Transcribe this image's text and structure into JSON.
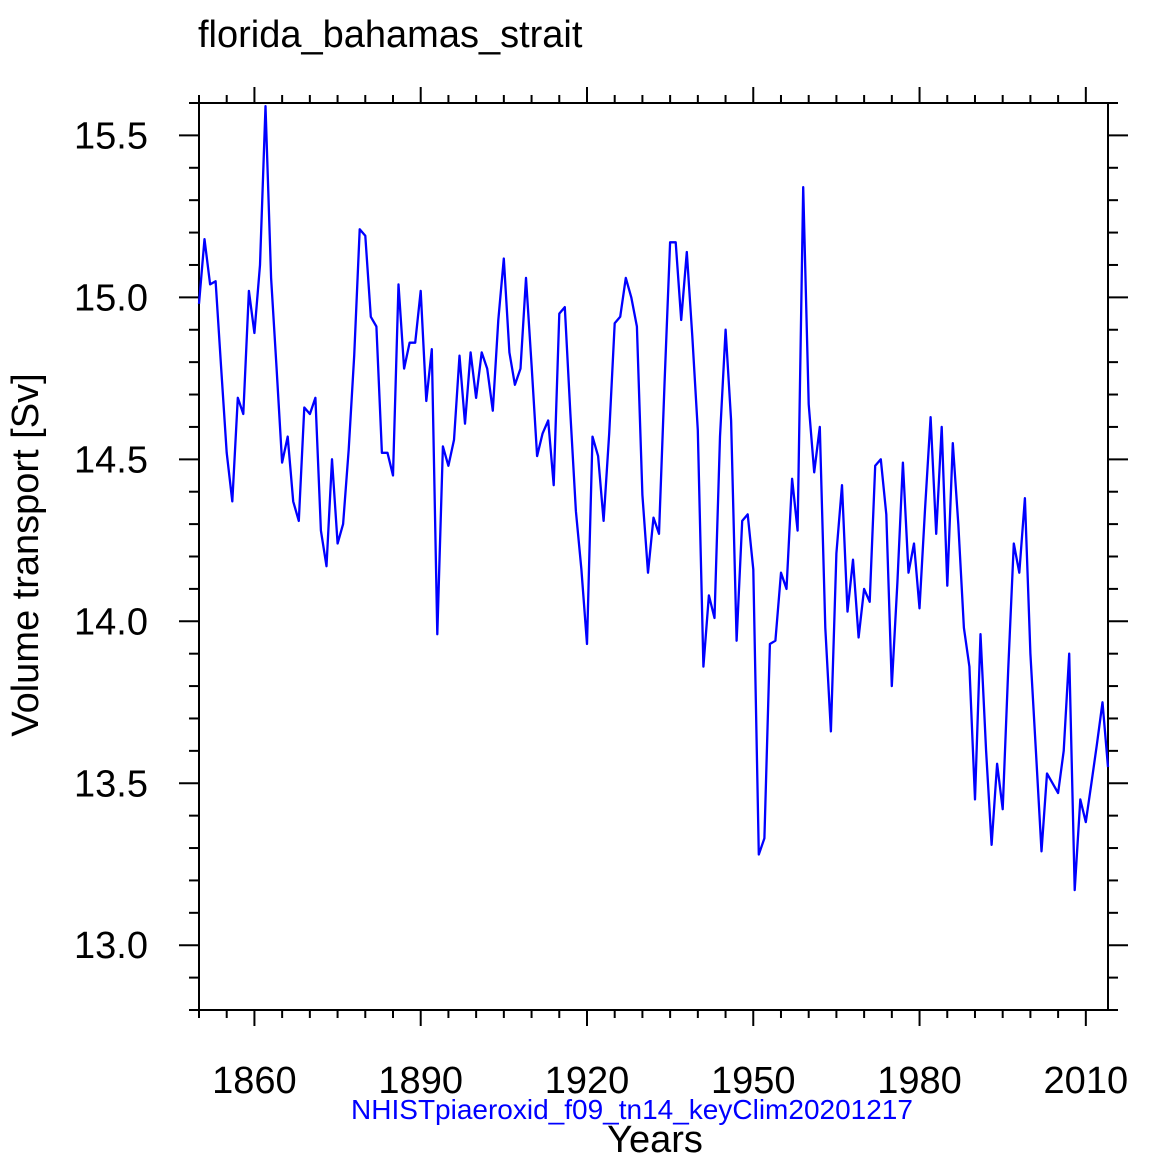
{
  "chart_data": {
    "type": "line",
    "title": "florida_bahamas_strait",
    "xlabel": "Years",
    "ylabel": "Volume transport [Sv]",
    "subtitle": "NHISTpiaeroxid_f09_tn14_keyClim20201217",
    "xlim": [
      1850,
      2014
    ],
    "ylim": [
      12.8,
      15.6
    ],
    "x_ticks": [
      1860,
      1890,
      1920,
      1950,
      1980,
      2010
    ],
    "x_tick_labels": [
      "1860",
      "1890",
      "1920",
      "1950",
      "1980",
      "2010"
    ],
    "y_ticks": [
      13.0,
      13.5,
      14.0,
      14.5,
      15.0,
      15.5
    ],
    "y_tick_labels": [
      "13.0",
      "13.5",
      "14.0",
      "14.5",
      "15.0",
      "15.5"
    ],
    "series": [
      {
        "name": "NHISTpiaeroxid_f09_tn14_keyClim20201217",
        "color": "#0000ff",
        "x_start": 1850,
        "x_step": 1,
        "values": [
          14.98,
          15.18,
          15.04,
          15.05,
          14.78,
          14.52,
          14.37,
          14.69,
          14.64,
          15.02,
          14.89,
          15.1,
          15.59,
          15.06,
          14.78,
          14.49,
          14.57,
          14.37,
          14.31,
          14.66,
          14.64,
          14.69,
          14.28,
          14.17,
          14.5,
          14.24,
          14.3,
          14.53,
          14.82,
          15.21,
          15.19,
          14.94,
          14.91,
          14.52,
          14.52,
          14.45,
          15.04,
          14.78,
          14.86,
          14.86,
          15.02,
          14.68,
          14.84,
          13.96,
          14.54,
          14.48,
          14.56,
          14.82,
          14.61,
          14.83,
          14.69,
          14.83,
          14.78,
          14.65,
          14.93,
          15.12,
          14.83,
          14.73,
          14.78,
          15.06,
          14.79,
          14.51,
          14.58,
          14.62,
          14.42,
          14.95,
          14.97,
          14.64,
          14.34,
          14.16,
          13.93,
          14.57,
          14.51,
          14.31,
          14.58,
          14.92,
          14.94,
          15.06,
          15.0,
          14.91,
          14.39,
          14.15,
          14.32,
          14.27,
          14.74,
          15.17,
          15.17,
          14.93,
          15.14,
          14.88,
          14.59,
          13.86,
          14.08,
          14.01,
          14.57,
          14.9,
          14.62,
          13.94,
          14.31,
          14.33,
          14.16,
          13.28,
          13.33,
          13.93,
          13.94,
          14.15,
          14.1,
          14.44,
          14.28,
          15.34,
          14.67,
          14.46,
          14.6,
          13.98,
          13.66,
          14.21,
          14.42,
          14.03,
          14.19,
          13.95,
          14.1,
          14.06,
          14.48,
          14.5,
          14.33,
          13.8,
          14.12,
          14.49,
          14.15,
          14.24,
          14.04,
          14.35,
          14.63,
          14.27,
          14.6,
          14.11,
          14.55,
          14.3,
          13.98,
          13.86,
          13.45,
          13.96,
          13.6,
          13.31,
          13.56,
          13.42,
          13.85,
          14.24,
          14.15,
          14.38,
          13.9,
          13.6,
          13.29,
          13.53,
          13.5,
          13.47,
          13.6,
          13.9,
          13.17,
          13.45,
          13.38,
          13.5,
          13.62,
          13.75,
          13.55
        ]
      }
    ]
  }
}
